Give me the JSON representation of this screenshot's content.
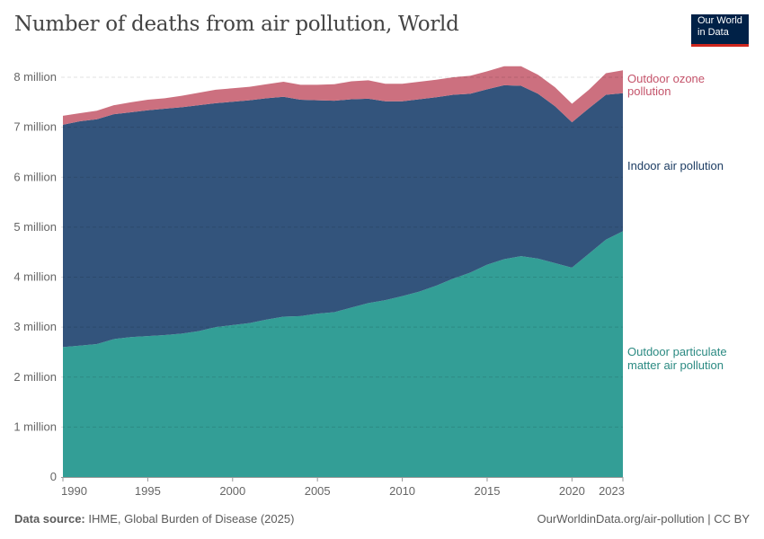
{
  "title": "Number of deaths from air pollution, World",
  "logo": {
    "line1": "Our World",
    "line2": "in Data"
  },
  "footer": {
    "source_label": "Data source:",
    "source_text": "IHME, Global Burden of Disease (2025)",
    "right": "OurWorldinData.org/air-pollution | CC BY"
  },
  "chart_data": {
    "type": "area",
    "stacked": true,
    "title": "Number of deaths from air pollution, World",
    "xlabel": "",
    "ylabel": "",
    "ylim": [
      0,
      8000000
    ],
    "yticks": [
      0,
      1000000,
      2000000,
      3000000,
      4000000,
      5000000,
      6000000,
      7000000,
      8000000
    ],
    "ytick_labels": [
      "0",
      "1 million",
      "2 million",
      "3 million",
      "4 million",
      "5 million",
      "6 million",
      "7 million",
      "8 million"
    ],
    "xticks": [
      1990,
      1995,
      2000,
      2005,
      2010,
      2015,
      2020,
      2023
    ],
    "xtick_labels": [
      "1990",
      "1995",
      "2000",
      "2005",
      "2010",
      "2015",
      "2020",
      "2023"
    ],
    "grid": "horizontal dashed",
    "legend": "right, inline labels",
    "x": [
      1990,
      1991,
      1992,
      1993,
      1994,
      1995,
      1996,
      1997,
      1998,
      1999,
      2000,
      2001,
      2002,
      2003,
      2004,
      2005,
      2006,
      2007,
      2008,
      2009,
      2010,
      2011,
      2012,
      2013,
      2014,
      2015,
      2016,
      2017,
      2018,
      2019,
      2020,
      2021,
      2022,
      2023
    ],
    "series": [
      {
        "name": "Outdoor particulate matter air pollution",
        "label_lines": [
          "Outdoor particulate",
          "matter air pollution"
        ],
        "color": "#339e96",
        "label_color": "#2b8a82",
        "values": [
          2600000,
          2630000,
          2660000,
          2760000,
          2800000,
          2820000,
          2840000,
          2870000,
          2920000,
          3000000,
          3040000,
          3080000,
          3150000,
          3210000,
          3220000,
          3270000,
          3300000,
          3390000,
          3480000,
          3540000,
          3620000,
          3710000,
          3830000,
          3970000,
          4090000,
          4250000,
          4360000,
          4420000,
          4370000,
          4280000,
          4190000,
          4470000,
          4750000,
          4920000
        ]
      },
      {
        "name": "Indoor air pollution",
        "label_lines": [
          "Indoor air pollution"
        ],
        "color": "#33547c",
        "label_color": "#1d3d63",
        "values": [
          4450000,
          4490000,
          4500000,
          4500000,
          4500000,
          4520000,
          4530000,
          4530000,
          4520000,
          4480000,
          4470000,
          4460000,
          4430000,
          4400000,
          4330000,
          4270000,
          4230000,
          4170000,
          4090000,
          3980000,
          3900000,
          3850000,
          3770000,
          3680000,
          3580000,
          3510000,
          3480000,
          3410000,
          3300000,
          3140000,
          2910000,
          2910000,
          2900000,
          2760000
        ]
      },
      {
        "name": "Outdoor ozone pollution",
        "label_lines": [
          "Outdoor ozone",
          "pollution"
        ],
        "color": "#cc707f",
        "label_color": "#c4536a",
        "values": [
          180000,
          160000,
          170000,
          180000,
          200000,
          210000,
          210000,
          230000,
          250000,
          270000,
          270000,
          270000,
          280000,
          300000,
          300000,
          310000,
          330000,
          360000,
          370000,
          350000,
          350000,
          350000,
          350000,
          350000,
          360000,
          360000,
          380000,
          390000,
          380000,
          380000,
          370000,
          370000,
          430000,
          460000
        ]
      }
    ]
  }
}
